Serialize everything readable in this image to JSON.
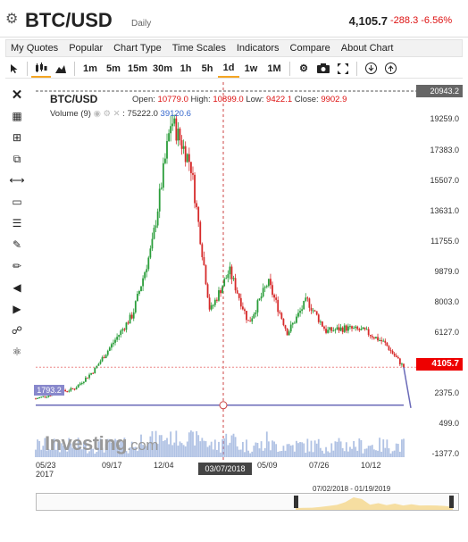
{
  "header": {
    "settings_icon": "gear-icon",
    "symbol": "BTC/USD",
    "period": "Daily",
    "last_price": "4,105.7",
    "change": "-288.3 -6.56%"
  },
  "menu": [
    "My Quotes",
    "Popular",
    "Chart Type",
    "Time Scales",
    "Indicators",
    "Compare",
    "About Chart"
  ],
  "toolbar": {
    "timeframes": [
      "1m",
      "5m",
      "15m",
      "30m",
      "1h",
      "5h",
      "1d",
      "1w",
      "1M"
    ],
    "active_timeframe": "1d"
  },
  "chart": {
    "title": "BTC/USD",
    "open_label": "Open:",
    "open": "10779.0",
    "high_label": "High:",
    "high": "10899.0",
    "low_label": "Low:",
    "low": "9422.1",
    "close_label": "Close:",
    "close": "9902.9",
    "volume_label": "Volume (9)",
    "volume_value1": "75222.0",
    "volume_value2": "39120.6",
    "y_ticks": [
      "19259.0",
      "17383.0",
      "15507.0",
      "13631.0",
      "11755.0",
      "9879.0",
      "8003.0",
      "6127.0",
      "2375.0",
      "499.0",
      "-1377.0"
    ],
    "top_tag": "20943.2",
    "price_tag": "4105.7",
    "left_tag": "1793.2",
    "x_ticks": [
      "05/23\n2017",
      "09/17",
      "12/04",
      "05/09",
      "07/26",
      "10/12"
    ],
    "crosshair_date": "03/07/2018",
    "watermark": "Investing",
    "watermark_suffix": ".com",
    "navigator_range": "07/02/2018 - 01/19/2019",
    "colors": {
      "up": "#2a9d3a",
      "down": "#d62a2a",
      "accent": "#f5a623",
      "volume": "#8fa8d8"
    }
  },
  "chart_data": {
    "type": "line",
    "title": "BTC/USD",
    "xlabel": "",
    "ylabel": "",
    "x": [
      "05/23/2017",
      "07/01/2017",
      "08/01/2017",
      "09/17/2017",
      "10/15/2017",
      "11/10/2017",
      "12/04/2017",
      "12/17/2017",
      "01/06/2018",
      "02/05/2018",
      "03/07/2018",
      "04/06/2018",
      "05/09/2018",
      "06/29/2018",
      "07/26/2018",
      "08/14/2018",
      "09/20/2018",
      "10/12/2018",
      "11/15/2018",
      "11/24/2018"
    ],
    "series": [
      {
        "values": [
          2200,
          2500,
          2800,
          3900,
          5600,
          7300,
          11500,
          19200,
          16500,
          7500,
          10000,
          6800,
          9300,
          6200,
          8200,
          6300,
          6500,
          6300,
          5600,
          4105.7
        ]
      }
    ],
    "ylim": [
      -1377,
      20943.2
    ]
  }
}
